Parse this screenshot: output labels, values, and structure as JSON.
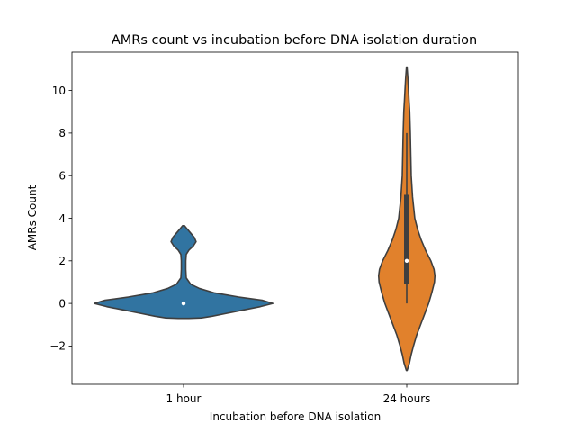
{
  "chart_data": {
    "type": "violin",
    "title": "AMRs count vs incubation before DNA isolation duration",
    "xlabel": "Incubation before DNA isolation",
    "ylabel": "AMRs Count",
    "ylim": [
      -3.8,
      11.8
    ],
    "yticks": [
      -2,
      0,
      2,
      4,
      6,
      8,
      10
    ],
    "ytick_labels": [
      "−2",
      "0",
      "2",
      "4",
      "6",
      "8",
      "10"
    ],
    "grid": false,
    "categories": [
      "1 hour",
      "24 hours"
    ],
    "series": [
      {
        "category": "1 hour",
        "color": "#3174a1",
        "median": 0,
        "q1": 0,
        "q3": 0,
        "whisker_low": 0,
        "whisker_high": 0,
        "density": [
          [
            -0.7,
            0.06
          ],
          [
            -0.68,
            0.2
          ],
          [
            -0.6,
            0.32
          ],
          [
            -0.45,
            0.5
          ],
          [
            -0.3,
            0.68
          ],
          [
            -0.15,
            0.86
          ],
          [
            0,
            1.0
          ],
          [
            0.15,
            0.88
          ],
          [
            0.3,
            0.62
          ],
          [
            0.5,
            0.34
          ],
          [
            0.7,
            0.18
          ],
          [
            0.9,
            0.08
          ],
          [
            1.2,
            0.03
          ],
          [
            1.6,
            0.025
          ],
          [
            2.0,
            0.025
          ],
          [
            2.3,
            0.03
          ],
          [
            2.5,
            0.06
          ],
          [
            2.7,
            0.11
          ],
          [
            2.9,
            0.14
          ],
          [
            3.1,
            0.12
          ],
          [
            3.3,
            0.08
          ],
          [
            3.5,
            0.04
          ],
          [
            3.65,
            0.01
          ]
        ]
      },
      {
        "category": "24 hours",
        "color": "#e1812c",
        "median": 2,
        "q1": 0.9,
        "q3": 5.1,
        "whisker_low": 0,
        "whisker_high": 8,
        "density": [
          [
            -3.15,
            0.004
          ],
          [
            -2.8,
            0.03
          ],
          [
            -2.4,
            0.05
          ],
          [
            -2.0,
            0.075
          ],
          [
            -1.5,
            0.11
          ],
          [
            -1.0,
            0.155
          ],
          [
            -0.5,
            0.2
          ],
          [
            0,
            0.245
          ],
          [
            0.5,
            0.28
          ],
          [
            1.0,
            0.31
          ],
          [
            1.3,
            0.315
          ],
          [
            1.6,
            0.305
          ],
          [
            2.0,
            0.27
          ],
          [
            2.5,
            0.21
          ],
          [
            3.0,
            0.16
          ],
          [
            3.5,
            0.12
          ],
          [
            4.0,
            0.09
          ],
          [
            5.0,
            0.065
          ],
          [
            6.0,
            0.05
          ],
          [
            7.0,
            0.045
          ],
          [
            8.0,
            0.04
          ],
          [
            9.0,
            0.033
          ],
          [
            9.5,
            0.026
          ],
          [
            10.0,
            0.02
          ],
          [
            10.6,
            0.012
          ],
          [
            11.1,
            0.003
          ]
        ]
      }
    ]
  }
}
